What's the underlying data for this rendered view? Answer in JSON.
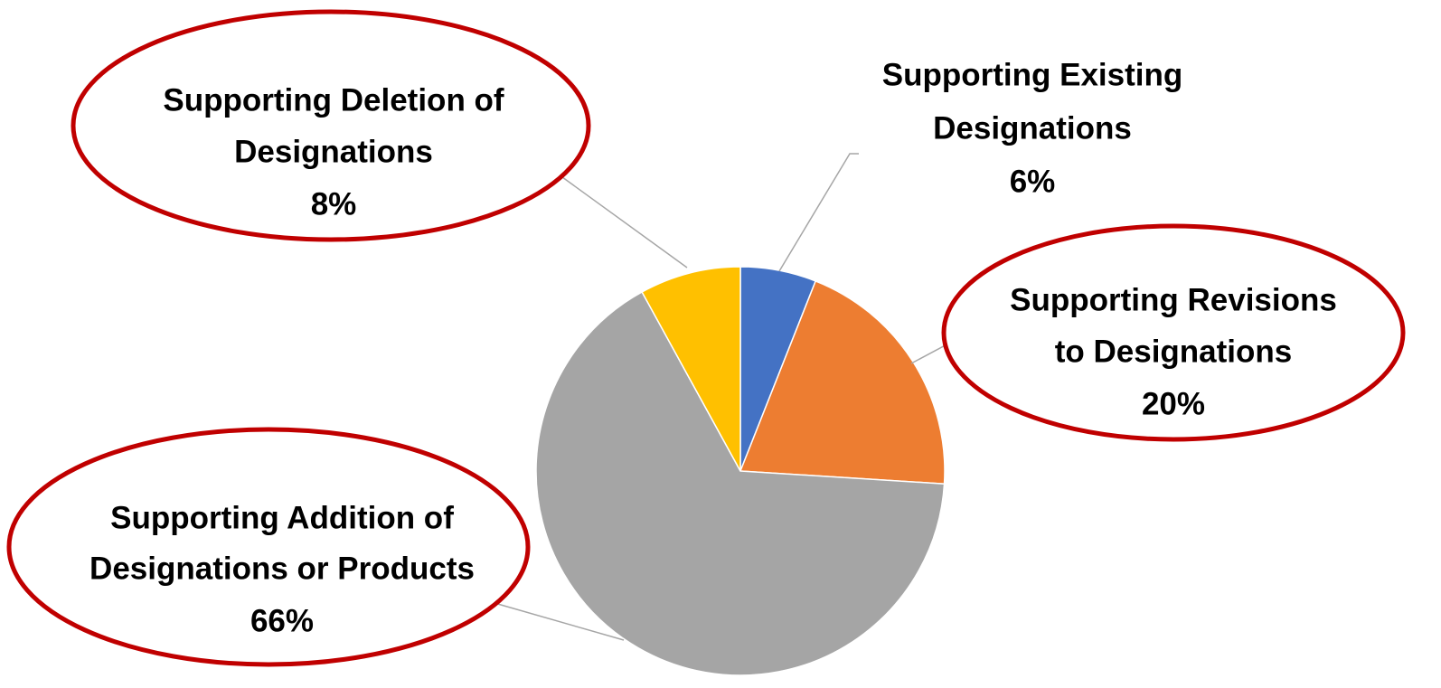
{
  "chart_data": {
    "type": "pie",
    "slices": [
      {
        "label": [
          "Supporting Existing",
          "Designations"
        ],
        "value": 6,
        "percent_label": "6%",
        "color": "#4472c4",
        "highlighted": false
      },
      {
        "label": [
          "Supporting Revisions",
          "to Designations"
        ],
        "value": 20,
        "percent_label": "20%",
        "color": "#ed7d31",
        "highlighted": true
      },
      {
        "label": [
          "Supporting Addition of",
          "Designations or Products"
        ],
        "value": 66,
        "percent_label": "66%",
        "color": "#a5a5a5",
        "highlighted": true
      },
      {
        "label": [
          "Supporting Deletion of",
          "Designations"
        ],
        "value": 8,
        "percent_label": "8%",
        "color": "#ffc000",
        "highlighted": true
      }
    ],
    "start_angle": "12 o'clock",
    "direction": "clockwise",
    "highlight_color": "#c00000",
    "leader_line_color": "#a6a6a6"
  }
}
